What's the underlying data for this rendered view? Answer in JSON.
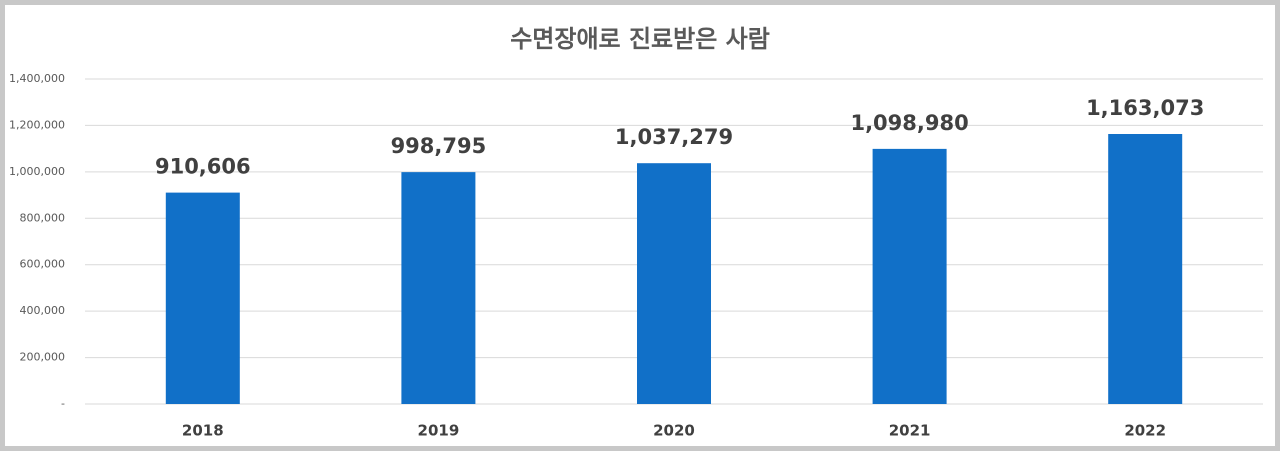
{
  "chart_data": {
    "type": "bar",
    "title": "수면장애로 진료받은 사람",
    "categories": [
      "2018",
      "2019",
      "2020",
      "2021",
      "2022"
    ],
    "values": [
      910606,
      998795,
      1037279,
      1098980,
      1163073
    ],
    "value_labels": [
      "910,606",
      "998,795",
      "1,037,279",
      "1,098,980",
      "1,163,073"
    ],
    "color": "#1170c8",
    "ylim": [
      0,
      1400000
    ],
    "yticks": [
      {
        "value": 0,
        "label": "-"
      },
      {
        "value": 200000,
        "label": "200,000"
      },
      {
        "value": 400000,
        "label": "400,000"
      },
      {
        "value": 600000,
        "label": "600,000"
      },
      {
        "value": 800000,
        "label": "800,000"
      },
      {
        "value": 1000000,
        "label": "1,000,000"
      },
      {
        "value": 1200000,
        "label": "1,200,000"
      },
      {
        "value": 1400000,
        "label": "1,400,000"
      }
    ],
    "grid": true
  }
}
